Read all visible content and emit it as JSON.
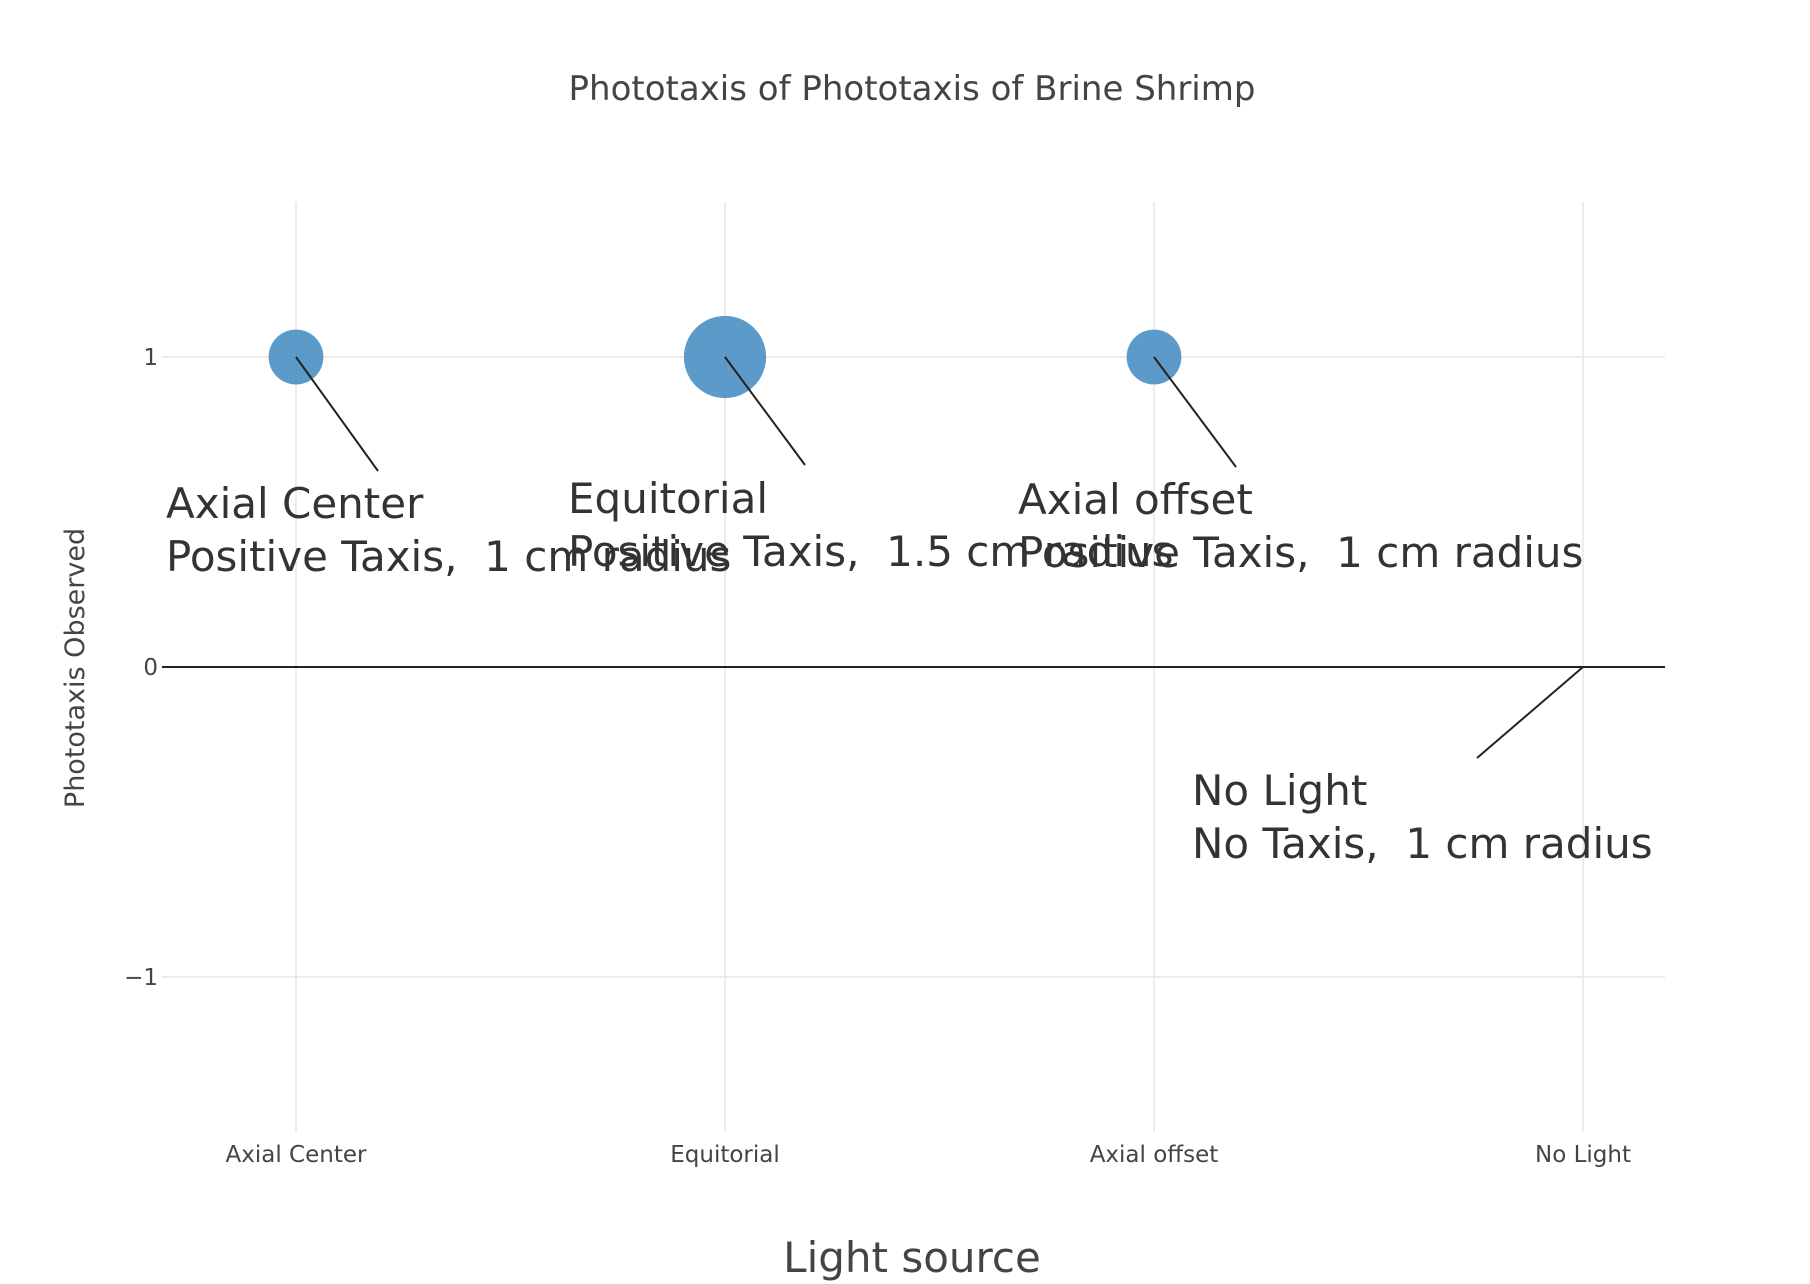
{
  "chart_data": {
    "type": "scatter",
    "title": "Phototaxis of Phototaxis of Brine Shrimp",
    "xlabel": "Light source",
    "ylabel": "Phototaxis Observed",
    "categories": [
      "Axial Center",
      "Equitorial",
      "Axial offset",
      "No Light"
    ],
    "values": [
      1,
      1,
      1,
      0
    ],
    "radius_cm": [
      1,
      1.5,
      1,
      1
    ],
    "ylim": [
      -1.5,
      1.5
    ],
    "yticks": [
      -1,
      0,
      1
    ],
    "ytick_labels": [
      "−1",
      "0",
      "1"
    ],
    "grid": true,
    "marker_color": "#4a8fc4",
    "annotations": [
      {
        "line1": "Axial Center",
        "line2": "Positive Taxis,  1 cm radius"
      },
      {
        "line1": "Equitorial",
        "line2": "Positive Taxis,  1.5 cm radius"
      },
      {
        "line1": "Axial offset",
        "line2": "Positive Taxis,  1 cm radius"
      },
      {
        "line1": "No Light",
        "line2": "No Taxis,  1 cm radius"
      }
    ]
  }
}
